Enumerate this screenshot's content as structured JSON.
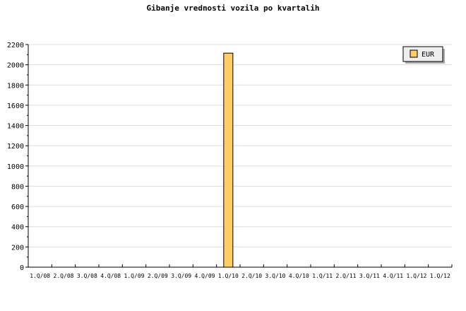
{
  "chart_data": {
    "type": "bar",
    "title": "Gibanje vrednosti vozila po kvartalih",
    "xlabel": "",
    "ylabel": "",
    "categories": [
      "1.Q/08",
      "2.Q/08",
      "3.Q/08",
      "4.Q/08",
      "1.Q/09",
      "2.Q/09",
      "3.Q/09",
      "4.Q/09",
      "1.Q/10",
      "2.Q/10",
      "3.Q/10",
      "4.Q/10",
      "1.Q/11",
      "2.Q/11",
      "3.Q/11",
      "4.Q/11",
      "1.Q/12",
      "1.Q/12"
    ],
    "series": [
      {
        "name": "EUR",
        "values": [
          0,
          0,
          0,
          0,
          0,
          0,
          0,
          0,
          2115,
          0,
          0,
          0,
          0,
          0,
          0,
          0,
          0,
          0
        ],
        "color": "#ffcc66"
      }
    ],
    "ylim": [
      0,
      2200
    ],
    "yticks": [
      0,
      200,
      400,
      600,
      800,
      1000,
      1200,
      1400,
      1600,
      1800,
      2000,
      2200
    ],
    "grid": true,
    "legend": "top-right"
  }
}
